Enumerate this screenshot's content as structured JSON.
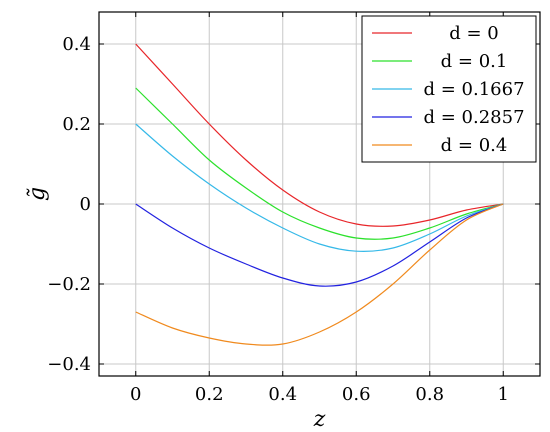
{
  "chart_data": {
    "type": "line",
    "title": "",
    "xlabel": "z",
    "ylabel": "g̃",
    "xlim": [
      -0.1,
      1.1
    ],
    "ylim": [
      -0.43,
      0.48
    ],
    "grid": true,
    "legend_position": "top-right",
    "x_ticks": [
      0,
      0.2,
      0.4,
      0.6,
      0.8,
      1
    ],
    "x_tick_labels": [
      "0",
      "0.2",
      "0.4",
      "0.6",
      "0.8",
      "1"
    ],
    "y_ticks": [
      -0.4,
      -0.2,
      0,
      0.2,
      0.4
    ],
    "y_tick_labels": [
      "−0.4",
      "−0.2",
      "0",
      "0.2",
      "0.4"
    ],
    "x": [
      0,
      0.1,
      0.2,
      0.3,
      0.4,
      0.5,
      0.6,
      0.7,
      0.8,
      0.9,
      1.0
    ],
    "series": [
      {
        "name": "d = 0",
        "color": "#e8262a",
        "values": [
          0.4,
          0.3,
          0.2,
          0.11,
          0.035,
          -0.02,
          -0.05,
          -0.055,
          -0.04,
          -0.015,
          0
        ]
      },
      {
        "name": "d = 0.1",
        "color": "#2ce12c",
        "values": [
          0.29,
          0.2,
          0.11,
          0.04,
          -0.02,
          -0.06,
          -0.085,
          -0.085,
          -0.06,
          -0.025,
          0
        ]
      },
      {
        "name": "d = 0.1667",
        "color": "#36b9e8",
        "values": [
          0.2,
          0.12,
          0.05,
          -0.01,
          -0.06,
          -0.1,
          -0.118,
          -0.11,
          -0.075,
          -0.03,
          0
        ]
      },
      {
        "name": "d = 0.2857",
        "color": "#2222e0",
        "values": [
          0.0,
          -0.06,
          -0.11,
          -0.15,
          -0.185,
          -0.205,
          -0.195,
          -0.155,
          -0.095,
          -0.035,
          0
        ]
      },
      {
        "name": "d = 0.4",
        "color": "#f08a1e",
        "values": [
          -0.27,
          -0.31,
          -0.335,
          -0.35,
          -0.35,
          -0.32,
          -0.27,
          -0.2,
          -0.115,
          -0.04,
          0
        ]
      }
    ]
  }
}
